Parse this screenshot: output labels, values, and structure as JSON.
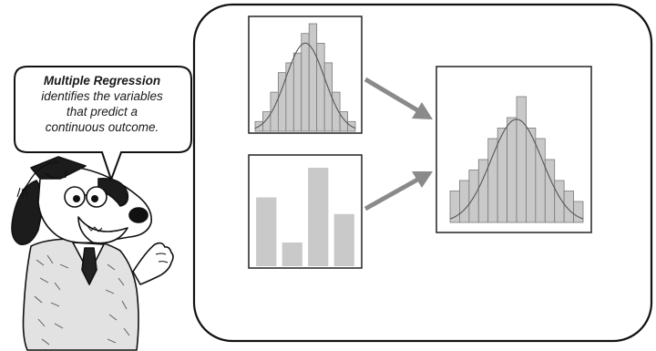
{
  "speech_bubble": {
    "title": "Multiple Regression",
    "lines": [
      "identifies the variables",
      "that predict a",
      "continuous outcome."
    ]
  },
  "diagram": {
    "inputs": [
      {
        "kind": "histogram-with-normal-curve",
        "values": [
          1,
          2,
          4,
          6,
          7,
          8,
          10,
          11,
          9,
          7,
          4,
          2,
          1
        ]
      },
      {
        "kind": "bar-chart",
        "values": [
          5.8,
          2.0,
          8.3,
          4.4
        ]
      }
    ],
    "output": {
      "kind": "histogram-with-normal-curve",
      "values": [
        3,
        4,
        5,
        6,
        8,
        9,
        10,
        12,
        9,
        8,
        6,
        4,
        3,
        2
      ]
    },
    "colors": {
      "bar_fill": "#c9c9c9",
      "bar_stroke": "#7a7a7a",
      "frame": "#222222",
      "arrow": "#8a8a8a",
      "curve": "#555555"
    }
  }
}
